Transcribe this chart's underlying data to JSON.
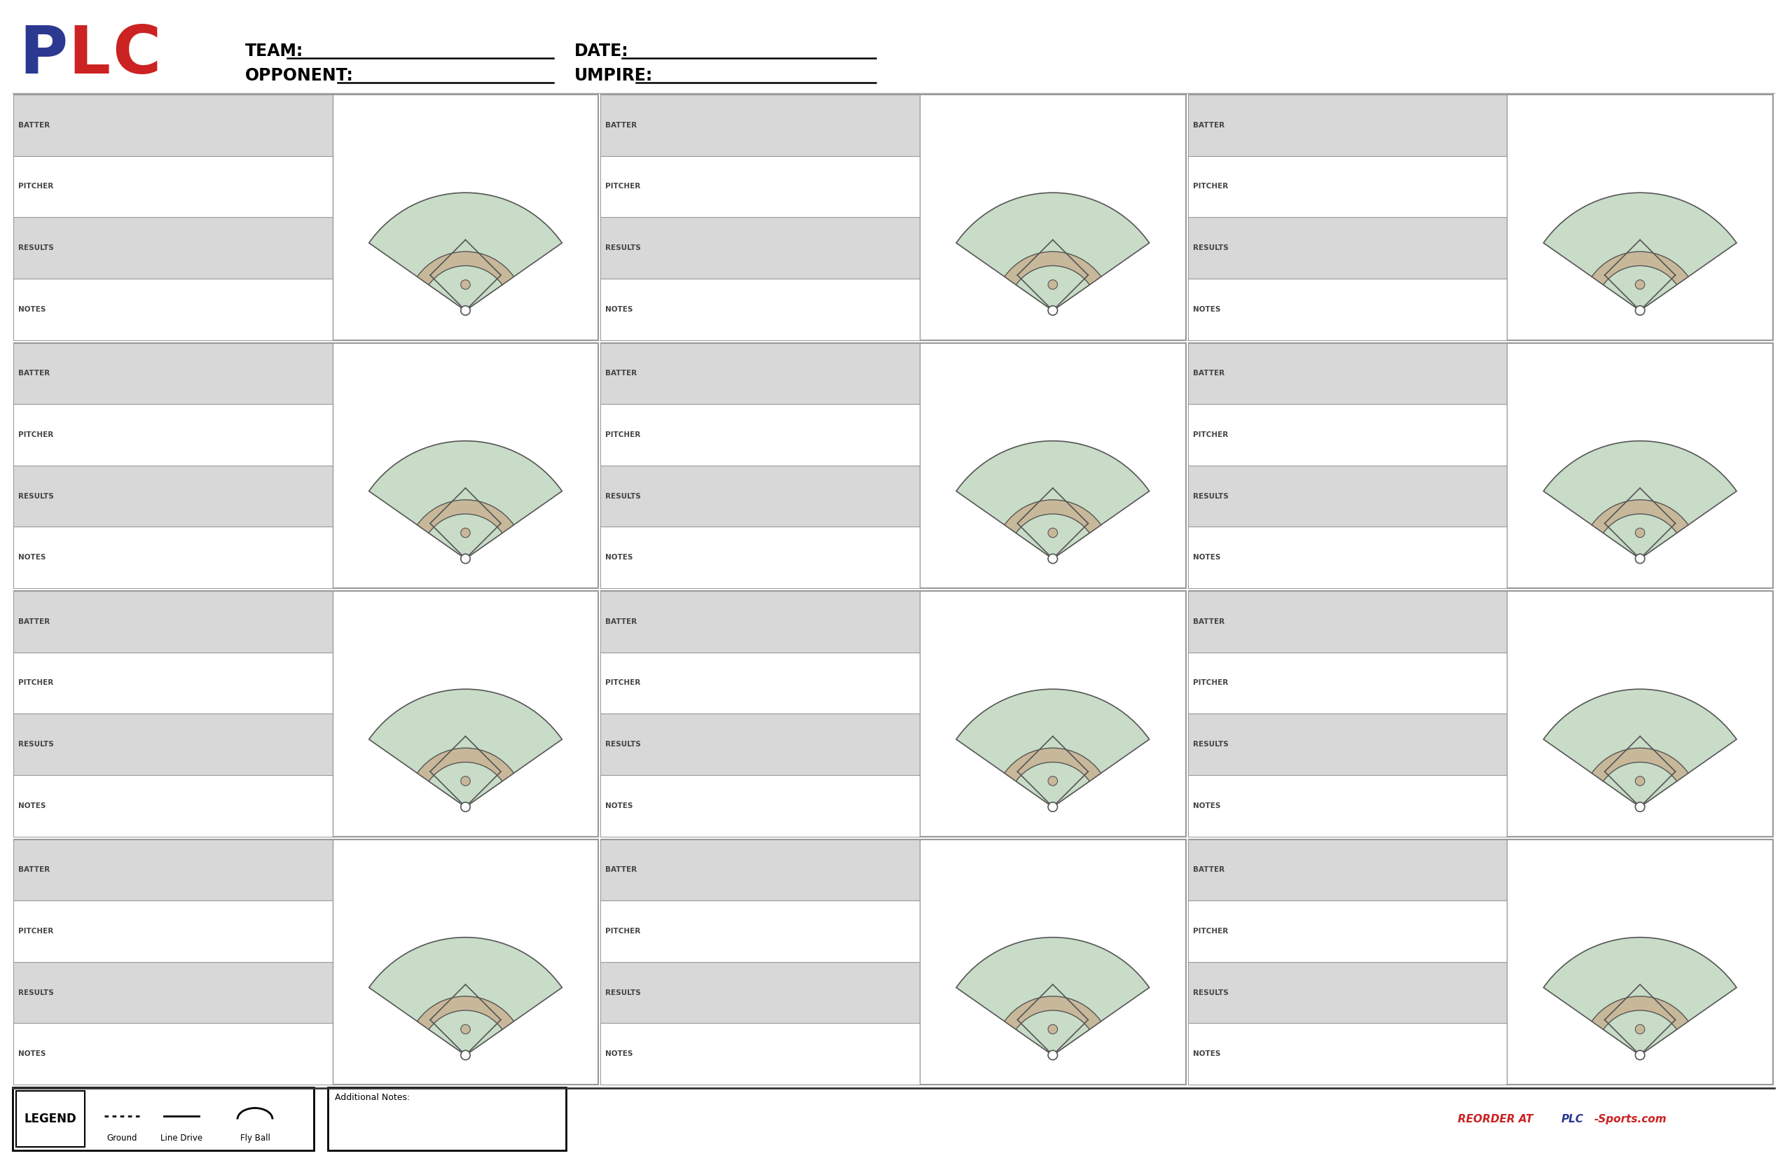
{
  "background_color": "#ffffff",
  "field_green": "#c8dcc8",
  "field_tan": "#c8b89a",
  "field_outline": "#555555",
  "label_bg_gray": "#d8d8d8",
  "label_bg_white": "#ffffff",
  "team_label": "TEAM:",
  "date_label": "DATE:",
  "opponent_label": "OPPONENT:",
  "umpire_label": "UMPIRE:",
  "header_labels": [
    "BATTER",
    "PITCHER",
    "RESULTS",
    "NOTES"
  ],
  "legend_text": [
    "Ground",
    "Line Drive",
    "Fly Ball"
  ],
  "legend_label": "LEGEND",
  "additional_notes": "Additional Notes:",
  "plc_blue": "#2b3990",
  "plc_red": "#cc2222",
  "border_color": "#888888",
  "card_border": "#999999"
}
